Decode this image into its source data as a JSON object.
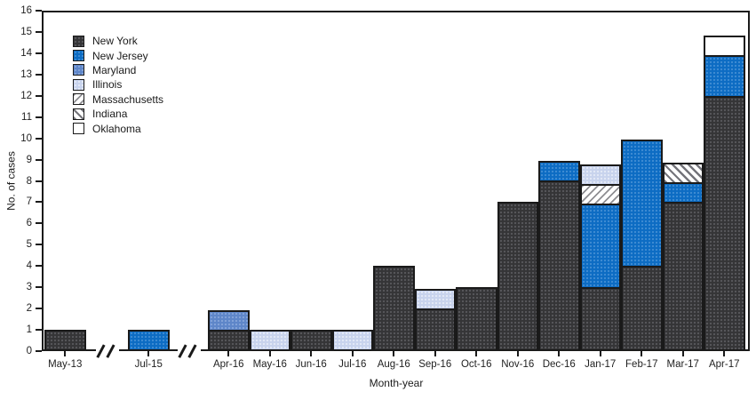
{
  "chart_data": {
    "type": "bar",
    "stacked": true,
    "title": "",
    "xlabel": "Month-year",
    "ylabel": "No. of cases",
    "ylim": [
      0,
      16
    ],
    "yticks": [
      0,
      1,
      2,
      3,
      4,
      5,
      6,
      7,
      8,
      9,
      10,
      11,
      12,
      13,
      14,
      15,
      16
    ],
    "grid": false,
    "frame": "full-box",
    "legend_position": "top-left-inside",
    "axis_breaks_after": [
      "May-13",
      "Jul-15"
    ],
    "categories": [
      "May-13",
      "Jul-15",
      "Apr-16",
      "May-16",
      "Jun-16",
      "Jul-16",
      "Aug-16",
      "Sep-16",
      "Oct-16",
      "Nov-16",
      "Dec-16",
      "Jan-17",
      "Feb-17",
      "Mar-17",
      "Apr-17"
    ],
    "series": [
      {
        "name": "New York",
        "color": "#353537",
        "pattern": "dark-speckle",
        "values": [
          1,
          0,
          1,
          0,
          1,
          0,
          4,
          2,
          3,
          7,
          8,
          3,
          4,
          7,
          12
        ]
      },
      {
        "name": "New Jersey",
        "color": "#0d6cc3",
        "pattern": "blue-speckle",
        "values": [
          0,
          1,
          0,
          0,
          0,
          0,
          0,
          0,
          0,
          0,
          1,
          4,
          6,
          1,
          2
        ]
      },
      {
        "name": "Maryland",
        "color": "#5e86c9",
        "pattern": "solid",
        "values": [
          0,
          0,
          1,
          0,
          0,
          0,
          0,
          0,
          0,
          0,
          0,
          0,
          0,
          0,
          0
        ]
      },
      {
        "name": "Illinois",
        "color": "#c8d3ed",
        "pattern": "solid",
        "values": [
          0,
          0,
          0,
          1,
          0,
          1,
          0,
          1,
          0,
          0,
          0,
          1,
          0,
          0,
          0
        ]
      },
      {
        "name": "Massachusetts",
        "color": "#ffffff",
        "pattern": "hatch-forward",
        "values": [
          0,
          0,
          0,
          0,
          0,
          0,
          0,
          0,
          0,
          0,
          0,
          1,
          0,
          0,
          0
        ]
      },
      {
        "name": "Indiana",
        "color": "#ffffff",
        "pattern": "hatch-back",
        "values": [
          0,
          0,
          0,
          0,
          0,
          0,
          0,
          0,
          0,
          0,
          0,
          0,
          0,
          1,
          0
        ]
      },
      {
        "name": "Oklahoma",
        "color": "#ffffff",
        "pattern": "solid",
        "values": [
          0,
          0,
          0,
          0,
          0,
          0,
          0,
          0,
          0,
          0,
          0,
          0,
          0,
          0,
          1
        ]
      }
    ],
    "stack_order": [
      "New York",
      "New Jersey",
      "Maryland",
      "Massachusetts",
      "Illinois",
      "Indiana",
      "Oklahoma"
    ],
    "totals_per_category": [
      1,
      1,
      2,
      1,
      1,
      1,
      4,
      3,
      3,
      7,
      9,
      9,
      10,
      9,
      15
    ],
    "axis_color": "#1a1a1a",
    "background_color": "#ffffff"
  }
}
